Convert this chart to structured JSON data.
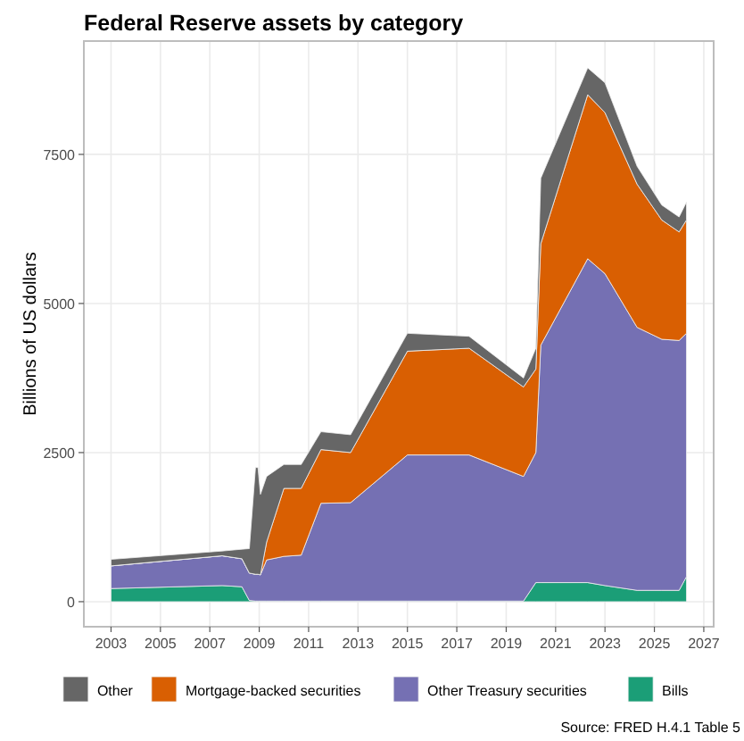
{
  "chart_data": {
    "type": "area",
    "stacked": true,
    "title": "Federal Reserve assets by category",
    "ylabel": "Billions of US dollars",
    "x": [
      2003,
      2007.5,
      2008.3,
      2008.6,
      2008.85,
      2008.95,
      2009.05,
      2009.3,
      2010.0,
      2010.7,
      2011.5,
      2012.7,
      2015,
      2017.5,
      2019.7,
      2020.2,
      2020.4,
      2022.3,
      2023,
      2024.3,
      2025.3,
      2026,
      2026.3
    ],
    "series": [
      {
        "name": "Bills",
        "color": "#1b9e77",
        "values": [
          220,
          270,
          250,
          20,
          10,
          10,
          10,
          10,
          10,
          10,
          10,
          10,
          10,
          10,
          10,
          320,
          320,
          320,
          270,
          190,
          190,
          190,
          420
        ]
      },
      {
        "name": "Other Treasury securities",
        "color": "#7570b3",
        "values": [
          380,
          500,
          470,
          460,
          450,
          450,
          440,
          690,
          750,
          770,
          1640,
          1650,
          2450,
          2450,
          2090,
          2180,
          3980,
          5430,
          5230,
          4410,
          4210,
          4190,
          4080
        ]
      },
      {
        "name": "Mortgage-backed securities",
        "color": "#d95f02",
        "values": [
          0,
          0,
          0,
          0,
          0,
          0,
          0,
          300,
          1140,
          1120,
          900,
          840,
          1740,
          1790,
          1500,
          1400,
          1700,
          2750,
          2700,
          2400,
          2000,
          1820,
          1900
        ]
      },
      {
        "name": "Other",
        "color": "#666666",
        "values": [
          110,
          80,
          160,
          410,
          1790,
          1790,
          1350,
          1100,
          400,
          400,
          300,
          300,
          300,
          200,
          150,
          350,
          1100,
          450,
          500,
          300,
          250,
          250,
          300
        ]
      }
    ],
    "xlim": [
      2001.9,
      2027.4
    ],
    "xticks": [
      2003,
      2005,
      2007,
      2009,
      2011,
      2013,
      2015,
      2017,
      2019,
      2021,
      2023,
      2025,
      2027
    ],
    "ylim": [
      -420,
      9400
    ],
    "yticks": [
      0,
      2500,
      5000,
      7500
    ],
    "grid": true,
    "legend": "bottom",
    "annotations": [
      "Source: FRED H.4.1 Table 5"
    ]
  }
}
